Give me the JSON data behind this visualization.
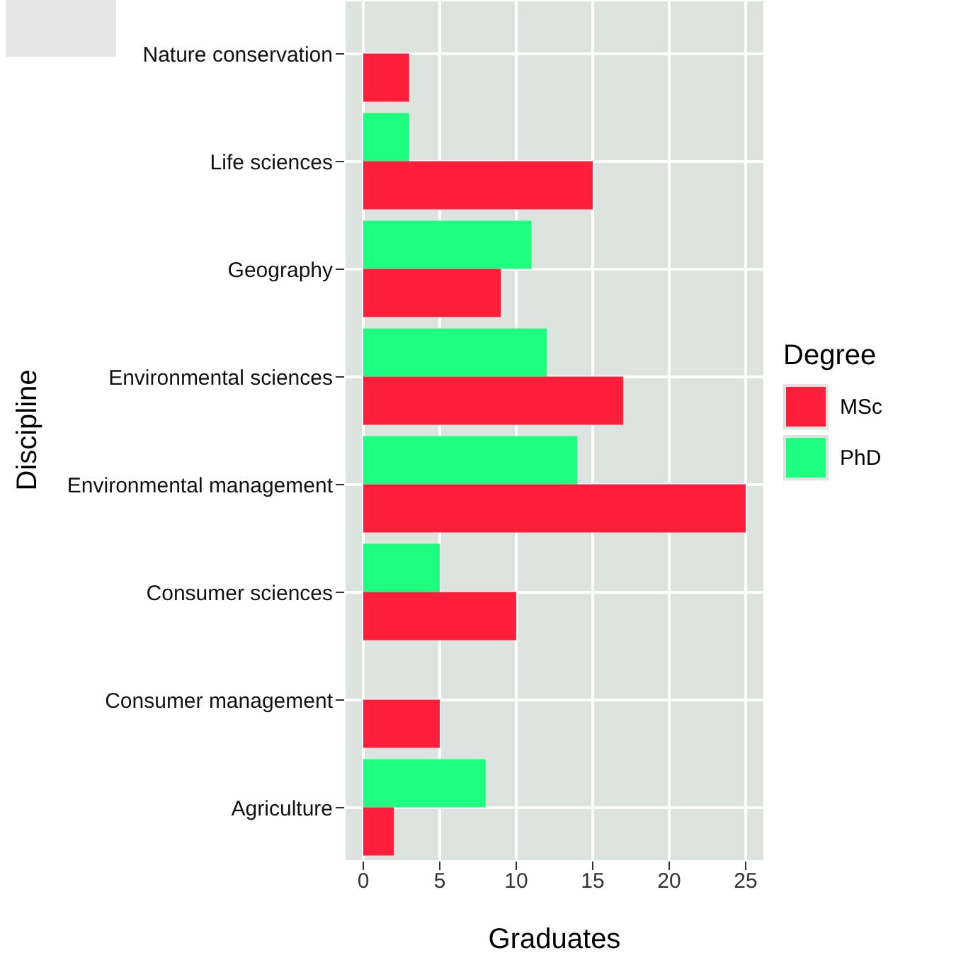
{
  "chart_data": {
    "type": "bar",
    "orientation": "horizontal",
    "xlabel": "Graduates",
    "ylabel": "Discipline",
    "legend_title": "Degree",
    "categories": [
      "Nature conservation",
      "Life sciences",
      "Geography",
      "Environmental sciences",
      "Environmental management",
      "Consumer sciences",
      "Consumer management",
      "Agriculture"
    ],
    "series": [
      {
        "name": "MSc",
        "color": "#ff1f3a",
        "values": [
          3,
          15,
          9,
          17,
          25,
          10,
          5,
          2
        ]
      },
      {
        "name": "PhD",
        "color": "#1fff7f",
        "values": [
          0,
          3,
          11,
          12,
          14,
          5,
          0,
          8
        ]
      }
    ],
    "xlim": [
      -1.25,
      26.25
    ],
    "xticks": [
      0,
      5,
      10,
      15,
      20,
      25
    ],
    "grid": true,
    "legend": "right"
  }
}
